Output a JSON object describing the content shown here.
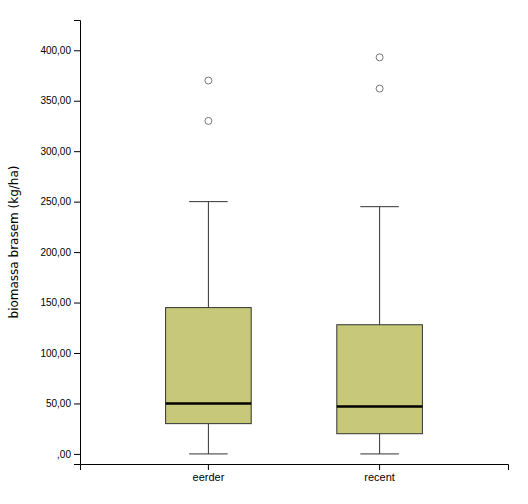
{
  "chart_data": {
    "type": "box",
    "ylabel": "biomassa brasem (kg/ha)",
    "categories": [
      "eerder",
      "recent"
    ],
    "values": [
      {
        "whisker_low": 0,
        "q1": 30,
        "median": 50,
        "q3": 145,
        "whisker_high": 250,
        "outliers": [
          330,
          370
        ]
      },
      {
        "whisker_low": 0,
        "q1": 20,
        "median": 47,
        "q3": 128,
        "whisker_high": 245,
        "outliers": [
          362,
          393
        ]
      }
    ],
    "color": "#c8c87a",
    "ylim": [
      -10,
      430
    ],
    "yticks": [
      {
        "value": 0,
        "label": ",00"
      },
      {
        "value": 50,
        "label": "50,00"
      },
      {
        "value": 100,
        "label": "100,00"
      },
      {
        "value": 150,
        "label": "150,00"
      },
      {
        "value": 200,
        "label": "200,00"
      },
      {
        "value": 250,
        "label": "250,00"
      },
      {
        "value": 300,
        "label": "300,00"
      },
      {
        "value": 350,
        "label": "350,00"
      },
      {
        "value": 400,
        "label": "400,00"
      }
    ],
    "grid": false
  }
}
